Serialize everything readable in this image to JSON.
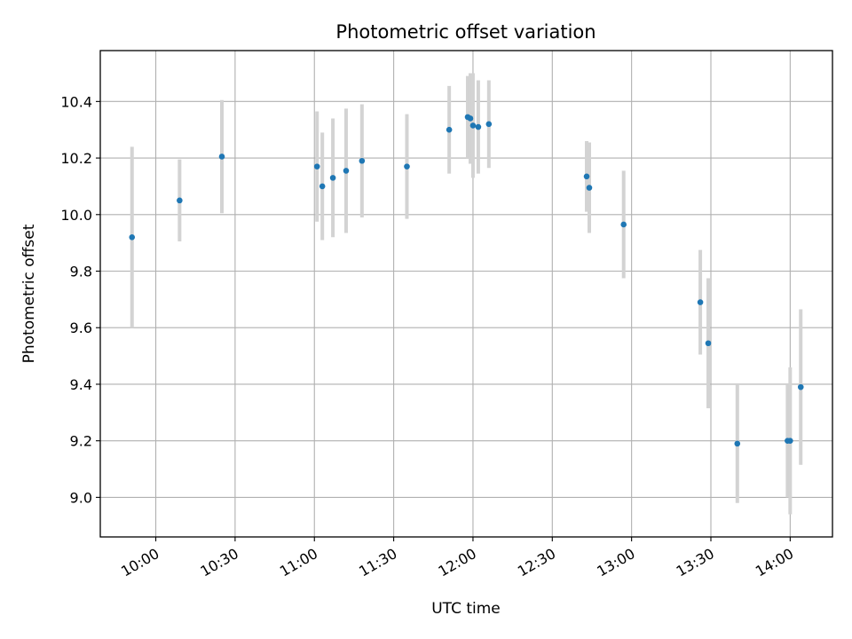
{
  "chart_data": {
    "type": "scatter",
    "title": "Photometric offset variation",
    "xlabel": "UTC time",
    "ylabel": "Photometric offset",
    "x_ticks": [
      "10:00",
      "10:30",
      "11:00",
      "11:30",
      "12:00",
      "12:30",
      "13:00",
      "13:30",
      "14:00"
    ],
    "y_ticks": [
      "9.0",
      "9.2",
      "9.4",
      "9.6",
      "9.8",
      "10.0",
      "10.2",
      "10.4"
    ],
    "xlim": [
      "09:39",
      "14:16"
    ],
    "ylim": [
      8.86,
      10.58
    ],
    "grid": true,
    "legend": "none",
    "colors": {
      "points": "#1f77b4",
      "errorbars": "#d3d3d3",
      "grid": "#b0b0b0"
    },
    "points": [
      {
        "x": "09:51",
        "y": 9.92,
        "err": 0.32
      },
      {
        "x": "10:09",
        "y": 10.05,
        "err": 0.145
      },
      {
        "x": "10:25",
        "y": 10.205,
        "err": 0.2
      },
      {
        "x": "11:01",
        "y": 10.17,
        "err": 0.195
      },
      {
        "x": "11:03",
        "y": 10.1,
        "err": 0.19
      },
      {
        "x": "11:07",
        "y": 10.13,
        "err": 0.21
      },
      {
        "x": "11:12",
        "y": 10.155,
        "err": 0.22
      },
      {
        "x": "11:18",
        "y": 10.19,
        "err": 0.2
      },
      {
        "x": "11:35",
        "y": 10.17,
        "err": 0.185
      },
      {
        "x": "11:51",
        "y": 10.3,
        "err": 0.155
      },
      {
        "x": "11:58",
        "y": 10.345,
        "err": 0.145
      },
      {
        "x": "11:59",
        "y": 10.34,
        "err": 0.16
      },
      {
        "x": "12:00",
        "y": 10.315,
        "err": 0.185
      },
      {
        "x": "12:02",
        "y": 10.31,
        "err": 0.165
      },
      {
        "x": "12:06",
        "y": 10.32,
        "err": 0.155
      },
      {
        "x": "12:43",
        "y": 10.135,
        "err": 0.125
      },
      {
        "x": "12:44",
        "y": 10.095,
        "err": 0.16
      },
      {
        "x": "12:57",
        "y": 9.965,
        "err": 0.19
      },
      {
        "x": "13:26",
        "y": 9.69,
        "err": 0.185
      },
      {
        "x": "13:29",
        "y": 9.545,
        "err": 0.23
      },
      {
        "x": "13:40",
        "y": 9.19,
        "err": 0.21
      },
      {
        "x": "13:59",
        "y": 9.2,
        "err": 0.2
      },
      {
        "x": "14:00",
        "y": 9.2,
        "err": 0.26
      },
      {
        "x": "14:04",
        "y": 9.39,
        "err": 0.275
      }
    ]
  }
}
